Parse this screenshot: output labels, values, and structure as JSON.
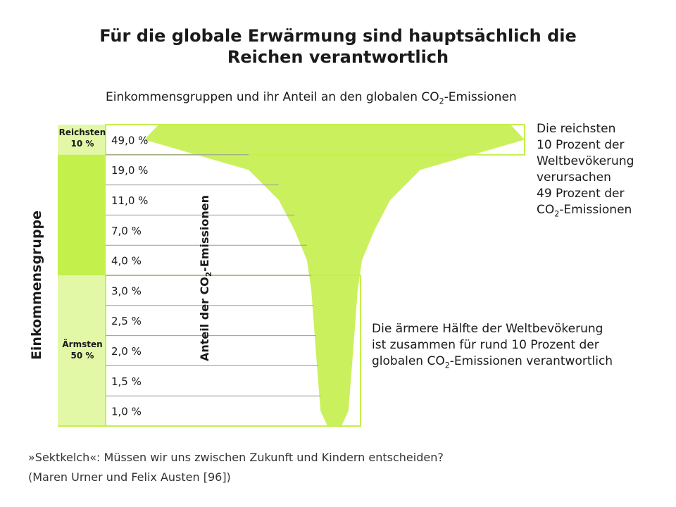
{
  "title_line1": "Für die globale Erwärmung sind hauptsächlich die",
  "title_line2": "Reichen verantwortlich",
  "subtitle_pre": "Einkommensgruppen und ihr Anteil an den globalen CO",
  "subtitle_sub": "2",
  "subtitle_post": "-Emissionen",
  "yaxis_label": "Einkommensgruppe",
  "mid_axis": {
    "pre": "Anteil der CO",
    "sub": "2",
    "post": "-Emissionen"
  },
  "group_labels": {
    "richest_line1": "Reichsten",
    "richest_line2": "10 %",
    "poorest_line1": "Ärmsten",
    "poorest_line2": "50 %"
  },
  "notes": {
    "rich": [
      "Die reichsten",
      "10 Prozent der",
      "Weltbevökerung",
      "verursachen",
      "49 Prozent der"
    ],
    "rich_last_pre": "CO",
    "rich_last_sub": "2",
    "rich_last_post": "-Emissionen",
    "poor_line1": "Die ärmere Hälfte der Weltbevökerung",
    "poor_line2": "ist zusammen für rund 10 Prozent der",
    "poor_line3_pre": "globalen CO",
    "poor_line3_sub": "2",
    "poor_line3_post": "-Emissionen verantwortlich"
  },
  "caption_line1": "»Sektkelch«: Müssen wir uns zwischen Zukunft und Kindern entscheiden?",
  "caption_line2": "(Maren Urner und Felix Austen [96])",
  "colors": {
    "green": "#c4f04b",
    "green_light": "#e2f8a6",
    "line": "#999999"
  },
  "chart_data": {
    "type": "bar",
    "categories": [
      "Reichsten 10 %",
      "",
      "",
      "",
      "",
      "",
      "",
      "",
      "",
      "Ärmsten 50 %"
    ],
    "values": [
      49.0,
      19.0,
      11.0,
      7.0,
      4.0,
      3.0,
      2.5,
      2.0,
      1.5,
      1.0
    ],
    "value_labels": [
      "49,0 %",
      "19,0 %",
      "11,0 %",
      "7,0 %",
      "4,0 %",
      "3,0 %",
      "2,5 %",
      "2,0 %",
      "1,5 %",
      "1,0 %"
    ],
    "title": "Für die globale Erwärmung sind hauptsächlich die Reichen verantwortlich",
    "subtitle": "Einkommensgruppen und ihr Anteil an den globalen CO2-Emissionen",
    "ylabel": "Einkommensgruppe",
    "xlabel": "Anteil der CO2-Emissionen"
  }
}
